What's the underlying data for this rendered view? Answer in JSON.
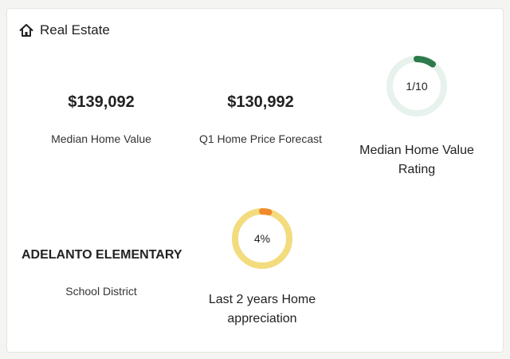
{
  "section": {
    "title": "Real Estate",
    "icon": "home-icon"
  },
  "stats": {
    "median_home_value": {
      "value": "$139,092",
      "label": "Median Home Value"
    },
    "price_forecast": {
      "value": "$130,992",
      "label": "Q1 Home Price Forecast"
    },
    "school_district": {
      "value": "ADELANTO ELEMENTARY",
      "label": "School District"
    }
  },
  "rating": {
    "text": "1/10",
    "fraction": 0.1,
    "label_line1": "Median Home Value",
    "label_line2": "Rating",
    "track_color": "#e6f2eb",
    "fill_color": "#2d7a4b"
  },
  "appreciation": {
    "text": "4%",
    "fraction": 0.04,
    "label_line1": "Last 2 years Home",
    "label_line2": "appreciation",
    "track_color": "#f2dc7e",
    "fill_color": "#f08a2c"
  }
}
